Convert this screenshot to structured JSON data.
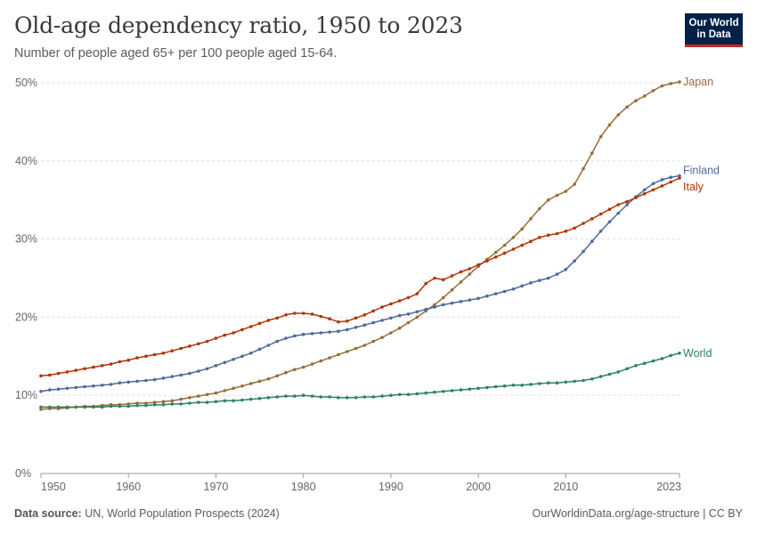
{
  "header": {
    "title": "Old-age dependency ratio, 1950 to 2023",
    "subtitle": "Number of people aged 65+ per 100 people aged 15-64."
  },
  "logo": {
    "line1": "Our World",
    "line2": "in Data",
    "bg": "#002147",
    "accent": "#ce261e"
  },
  "footer": {
    "source_label": "Data source:",
    "source_text": "UN, World Population Prospects (2024)",
    "citation": "OurWorldinData.org/age-structure | CC BY"
  },
  "chart_data": {
    "type": "line",
    "x": [
      1950,
      1951,
      1952,
      1953,
      1954,
      1955,
      1956,
      1957,
      1958,
      1959,
      1960,
      1961,
      1962,
      1963,
      1964,
      1965,
      1966,
      1967,
      1968,
      1969,
      1970,
      1971,
      1972,
      1973,
      1974,
      1975,
      1976,
      1977,
      1978,
      1979,
      1980,
      1981,
      1982,
      1983,
      1984,
      1985,
      1986,
      1987,
      1988,
      1989,
      1990,
      1991,
      1992,
      1993,
      1994,
      1995,
      1996,
      1997,
      1998,
      1999,
      2000,
      2001,
      2002,
      2003,
      2004,
      2005,
      2006,
      2007,
      2008,
      2009,
      2010,
      2011,
      2012,
      2013,
      2014,
      2015,
      2016,
      2017,
      2018,
      2019,
      2020,
      2021,
      2022,
      2023
    ],
    "xlim": [
      1950,
      2023
    ],
    "ylim": [
      0,
      50
    ],
    "x_ticks": [
      1950,
      1960,
      1970,
      1980,
      1990,
      2000,
      2010,
      2023
    ],
    "y_ticks": [
      0,
      10,
      20,
      30,
      40,
      50
    ],
    "y_tick_labels": [
      "0%",
      "10%",
      "20%",
      "30%",
      "40%",
      "50%"
    ],
    "grid": "horizontal dashed",
    "series": [
      {
        "name": "Japan",
        "color": "#986d39",
        "values": [
          8.2,
          8.3,
          8.3,
          8.4,
          8.5,
          8.6,
          8.6,
          8.7,
          8.8,
          8.8,
          8.9,
          9.0,
          9.0,
          9.1,
          9.2,
          9.3,
          9.5,
          9.7,
          9.9,
          10.1,
          10.3,
          10.6,
          10.9,
          11.2,
          11.5,
          11.8,
          12.1,
          12.5,
          12.9,
          13.3,
          13.6,
          14.0,
          14.4,
          14.8,
          15.2,
          15.6,
          16.0,
          16.4,
          16.9,
          17.4,
          18.0,
          18.6,
          19.3,
          20.0,
          20.8,
          21.6,
          22.5,
          23.5,
          24.5,
          25.5,
          26.5,
          27.4,
          28.3,
          29.2,
          30.2,
          31.3,
          32.6,
          33.9,
          35.0,
          35.6,
          36.1,
          37.0,
          39.0,
          41.0,
          43.1,
          44.6,
          45.9,
          46.9,
          47.7,
          48.3,
          49.0,
          49.6,
          49.9,
          50.1
        ]
      },
      {
        "name": "Finland",
        "color": "#4c6a9c",
        "values": [
          10.5,
          10.7,
          10.8,
          10.9,
          11.0,
          11.1,
          11.2,
          11.3,
          11.4,
          11.6,
          11.7,
          11.8,
          11.9,
          12.0,
          12.2,
          12.4,
          12.6,
          12.8,
          13.1,
          13.4,
          13.8,
          14.2,
          14.6,
          15.0,
          15.4,
          15.9,
          16.4,
          16.9,
          17.3,
          17.6,
          17.8,
          17.9,
          18.0,
          18.1,
          18.2,
          18.4,
          18.7,
          19.0,
          19.3,
          19.6,
          19.9,
          20.2,
          20.4,
          20.7,
          21.0,
          21.3,
          21.6,
          21.8,
          22.0,
          22.2,
          22.4,
          22.7,
          23.0,
          23.3,
          23.6,
          24.0,
          24.4,
          24.7,
          25.0,
          25.5,
          26.1,
          27.2,
          28.4,
          29.7,
          31.0,
          32.2,
          33.3,
          34.4,
          35.4,
          36.3,
          37.1,
          37.6,
          37.9,
          38.1
        ]
      },
      {
        "name": "Italy",
        "color": "#b13507",
        "values": [
          12.5,
          12.6,
          12.8,
          13.0,
          13.2,
          13.4,
          13.6,
          13.8,
          14.0,
          14.3,
          14.5,
          14.8,
          15.0,
          15.2,
          15.4,
          15.7,
          16.0,
          16.3,
          16.6,
          16.9,
          17.3,
          17.7,
          18.0,
          18.4,
          18.8,
          19.2,
          19.6,
          19.9,
          20.3,
          20.5,
          20.5,
          20.4,
          20.1,
          19.8,
          19.4,
          19.5,
          19.9,
          20.3,
          20.8,
          21.3,
          21.7,
          22.1,
          22.5,
          23.0,
          24.3,
          25.0,
          24.8,
          25.3,
          25.8,
          26.2,
          26.7,
          27.2,
          27.7,
          28.2,
          28.7,
          29.2,
          29.7,
          30.2,
          30.5,
          30.7,
          31.0,
          31.4,
          32.0,
          32.6,
          33.2,
          33.8,
          34.4,
          34.8,
          35.3,
          35.8,
          36.3,
          36.8,
          37.3,
          37.8
        ]
      },
      {
        "name": "World",
        "color": "#2c8465",
        "values": [
          8.5,
          8.5,
          8.5,
          8.5,
          8.5,
          8.5,
          8.5,
          8.5,
          8.6,
          8.6,
          8.6,
          8.7,
          8.7,
          8.8,
          8.8,
          8.9,
          8.9,
          9.0,
          9.1,
          9.1,
          9.2,
          9.3,
          9.3,
          9.4,
          9.5,
          9.6,
          9.7,
          9.8,
          9.9,
          9.9,
          10.0,
          9.9,
          9.8,
          9.8,
          9.7,
          9.7,
          9.7,
          9.8,
          9.8,
          9.9,
          10.0,
          10.1,
          10.1,
          10.2,
          10.3,
          10.4,
          10.5,
          10.6,
          10.7,
          10.8,
          10.9,
          11.0,
          11.1,
          11.2,
          11.3,
          11.3,
          11.4,
          11.5,
          11.6,
          11.6,
          11.7,
          11.8,
          11.9,
          12.1,
          12.4,
          12.7,
          13.0,
          13.4,
          13.8,
          14.1,
          14.4,
          14.7,
          15.1,
          15.4
        ]
      }
    ]
  }
}
